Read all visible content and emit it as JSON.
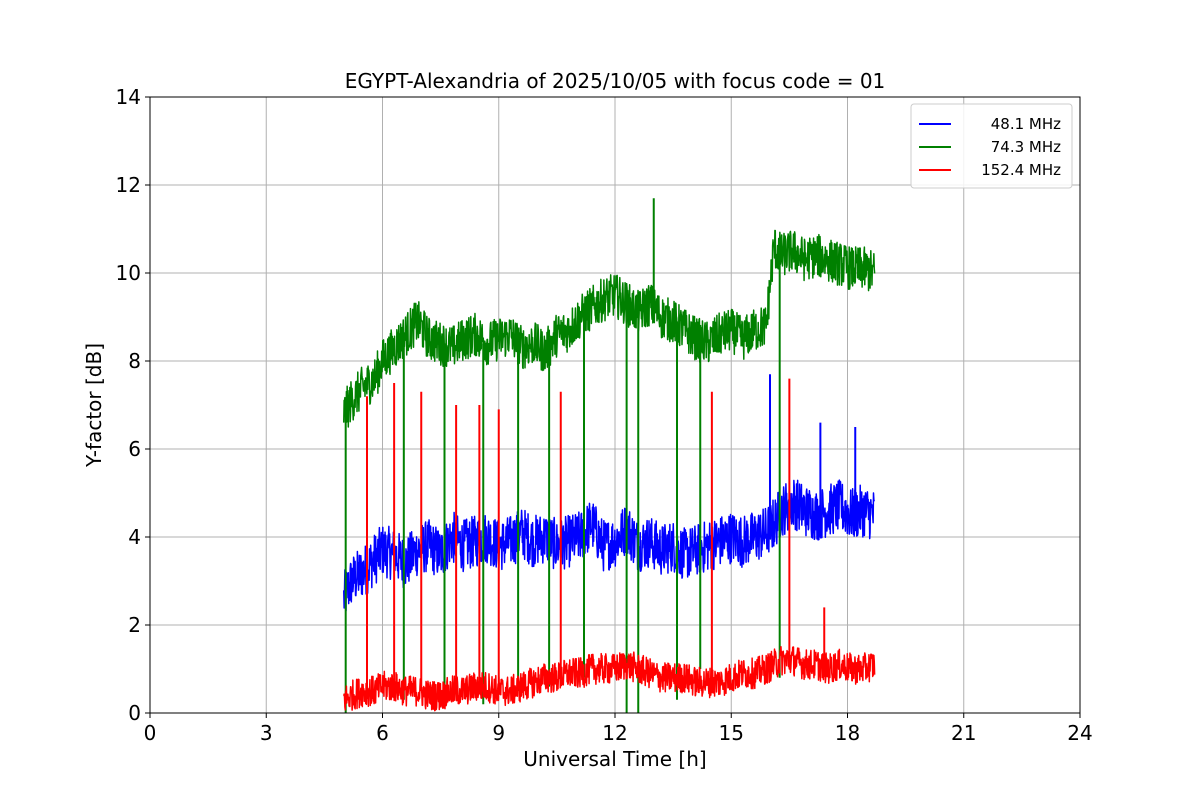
{
  "chart_data": {
    "type": "line",
    "title": "EGYPT-Alexandria of 2025/10/05 with focus code = 01",
    "xlabel": "Universal Time [h]",
    "ylabel": "Y-factor [dB]",
    "xlim": [
      0,
      24
    ],
    "ylim": [
      0,
      14
    ],
    "xticks": [
      0,
      3,
      6,
      9,
      12,
      15,
      18,
      21,
      24
    ],
    "yticks": [
      0,
      2,
      4,
      6,
      8,
      10,
      12,
      14
    ],
    "grid": true,
    "legend_position": "top-right",
    "series": [
      {
        "name": "48.1 MHz",
        "color": "#0000ff",
        "x": [
          5.0,
          5.2,
          5.5,
          5.8,
          6.0,
          6.3,
          6.6,
          6.9,
          7.2,
          7.5,
          7.8,
          8.1,
          8.4,
          8.7,
          9.0,
          9.3,
          9.6,
          9.9,
          10.2,
          10.5,
          10.8,
          11.1,
          11.4,
          11.7,
          12.0,
          12.3,
          12.6,
          12.9,
          13.2,
          13.5,
          13.8,
          14.1,
          14.4,
          14.7,
          15.0,
          15.3,
          15.6,
          15.9,
          16.1,
          16.3,
          16.6,
          16.9,
          17.2,
          17.5,
          17.8,
          18.1,
          18.4,
          18.7
        ],
        "values": [
          2.6,
          3.0,
          3.2,
          3.5,
          3.7,
          3.6,
          3.4,
          3.7,
          3.8,
          3.6,
          4.0,
          3.8,
          3.9,
          4.0,
          3.8,
          3.9,
          4.1,
          3.9,
          4.0,
          3.8,
          3.9,
          4.0,
          4.3,
          3.8,
          3.9,
          4.2,
          3.8,
          3.9,
          3.7,
          3.8,
          3.6,
          3.7,
          3.8,
          3.9,
          4.0,
          3.9,
          4.0,
          4.1,
          4.3,
          4.6,
          4.8,
          4.6,
          4.5,
          4.6,
          4.7,
          4.5,
          4.6,
          4.5
        ],
        "spread": 0.6
      },
      {
        "name": "74.3 MHz",
        "color": "#008000",
        "x": [
          5.0,
          5.2,
          5.5,
          5.8,
          6.0,
          6.3,
          6.6,
          6.9,
          7.2,
          7.5,
          7.8,
          8.1,
          8.4,
          8.7,
          9.0,
          9.3,
          9.6,
          9.9,
          10.2,
          10.5,
          10.8,
          11.1,
          11.4,
          11.7,
          12.0,
          12.3,
          12.6,
          12.9,
          13.2,
          13.5,
          13.8,
          14.1,
          14.4,
          14.7,
          15.0,
          15.3,
          15.6,
          15.9,
          16.1,
          16.3,
          16.6,
          16.9,
          17.2,
          17.5,
          17.8,
          18.1,
          18.4,
          18.7
        ],
        "values": [
          6.8,
          7.1,
          7.4,
          7.6,
          8.0,
          8.3,
          8.6,
          8.9,
          8.5,
          8.4,
          8.3,
          8.5,
          8.6,
          8.4,
          8.5,
          8.6,
          8.3,
          8.4,
          8.2,
          8.6,
          8.7,
          9.0,
          9.2,
          9.4,
          9.5,
          9.3,
          9.1,
          9.3,
          9.0,
          8.9,
          8.7,
          8.5,
          8.4,
          8.6,
          8.7,
          8.5,
          8.7,
          8.8,
          10.6,
          10.4,
          10.5,
          10.3,
          10.4,
          10.3,
          10.2,
          10.1,
          10.1,
          10.0
        ],
        "spread": 0.5
      },
      {
        "name": "152.4 MHz",
        "color": "#ff0000",
        "x": [
          5.0,
          5.2,
          5.5,
          5.8,
          6.0,
          6.3,
          6.6,
          6.9,
          7.2,
          7.5,
          7.8,
          8.1,
          8.4,
          8.7,
          9.0,
          9.3,
          9.6,
          9.9,
          10.2,
          10.5,
          10.8,
          11.1,
          11.4,
          11.7,
          12.0,
          12.3,
          12.6,
          12.9,
          13.2,
          13.5,
          13.8,
          14.1,
          14.4,
          14.7,
          15.0,
          15.3,
          15.6,
          15.9,
          16.1,
          16.3,
          16.6,
          16.9,
          17.2,
          17.5,
          17.8,
          18.1,
          18.4,
          18.7
        ],
        "values": [
          0.3,
          0.4,
          0.5,
          0.5,
          0.6,
          0.6,
          0.5,
          0.5,
          0.4,
          0.4,
          0.5,
          0.5,
          0.6,
          0.6,
          0.5,
          0.5,
          0.6,
          0.7,
          0.8,
          0.8,
          0.9,
          0.9,
          1.0,
          1.0,
          1.0,
          1.1,
          1.0,
          0.9,
          0.8,
          0.8,
          0.8,
          0.7,
          0.7,
          0.7,
          0.8,
          0.9,
          0.9,
          1.0,
          1.1,
          1.2,
          1.2,
          1.1,
          1.1,
          1.0,
          1.1,
          1.0,
          1.0,
          1.1
        ],
        "spread": 0.35
      }
    ],
    "spikes": [
      {
        "series": "74.3 MHz",
        "x": 5.05,
        "from": 6.8,
        "to": 0.0
      },
      {
        "series": "74.3 MHz",
        "x": 6.55,
        "from": 8.6,
        "to": 0.3
      },
      {
        "series": "74.3 MHz",
        "x": 7.6,
        "from": 8.4,
        "to": 0.3
      },
      {
        "series": "74.3 MHz",
        "x": 8.6,
        "from": 8.4,
        "to": 0.2
      },
      {
        "series": "74.3 MHz",
        "x": 9.5,
        "from": 8.5,
        "to": 0.5
      },
      {
        "series": "74.3 MHz",
        "x": 10.3,
        "from": 8.3,
        "to": 0.6
      },
      {
        "series": "74.3 MHz",
        "x": 11.2,
        "from": 9.0,
        "to": 0.8
      },
      {
        "series": "74.3 MHz",
        "x": 12.3,
        "from": 9.3,
        "to": 0.0
      },
      {
        "series": "74.3 MHz",
        "x": 12.6,
        "from": 9.1,
        "to": 0.0
      },
      {
        "series": "74.3 MHz",
        "x": 13.0,
        "from": 9.3,
        "to": 11.7
      },
      {
        "series": "74.3 MHz",
        "x": 13.6,
        "from": 8.9,
        "to": 0.3
      },
      {
        "series": "74.3 MHz",
        "x": 14.2,
        "from": 8.5,
        "to": 1.0
      },
      {
        "series": "74.3 MHz",
        "x": 16.25,
        "from": 10.4,
        "to": 0.8
      },
      {
        "series": "152.4 MHz",
        "x": 5.6,
        "from": 0.5,
        "to": 7.2
      },
      {
        "series": "152.4 MHz",
        "x": 6.3,
        "from": 0.6,
        "to": 7.5
      },
      {
        "series": "152.4 MHz",
        "x": 7.0,
        "from": 0.5,
        "to": 7.3
      },
      {
        "series": "152.4 MHz",
        "x": 7.9,
        "from": 0.5,
        "to": 7.0
      },
      {
        "series": "152.4 MHz",
        "x": 8.5,
        "from": 0.6,
        "to": 7.0
      },
      {
        "series": "152.4 MHz",
        "x": 9.0,
        "from": 0.5,
        "to": 6.9
      },
      {
        "series": "152.4 MHz",
        "x": 10.6,
        "from": 0.8,
        "to": 7.3
      },
      {
        "series": "152.4 MHz",
        "x": 14.5,
        "from": 0.7,
        "to": 7.3
      },
      {
        "series": "152.4 MHz",
        "x": 16.5,
        "from": 1.2,
        "to": 7.6
      },
      {
        "series": "152.4 MHz",
        "x": 17.4,
        "from": 1.0,
        "to": 2.4
      },
      {
        "series": "48.1 MHz",
        "x": 16.0,
        "from": 4.1,
        "to": 7.7
      },
      {
        "series": "48.1 MHz",
        "x": 17.3,
        "from": 4.5,
        "to": 6.6
      },
      {
        "series": "48.1 MHz",
        "x": 18.2,
        "from": 4.5,
        "to": 6.5
      }
    ]
  }
}
